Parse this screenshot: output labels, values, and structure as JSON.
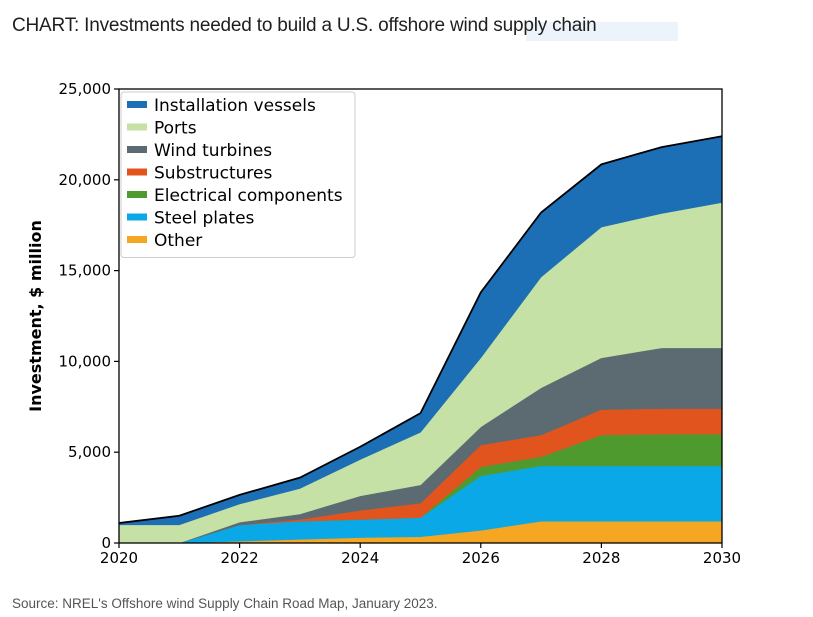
{
  "page": {
    "title": "CHART: Investments needed to build a U.S. offshore wind supply chain",
    "source": "Source: NREL's Offshore wind Supply Chain Road Map, January 2023."
  },
  "chart_data": {
    "type": "area",
    "stacked": true,
    "title": "",
    "xlabel": "",
    "ylabel": "Investment, $ million",
    "xlim": [
      2020,
      2030
    ],
    "ylim": [
      0,
      25000
    ],
    "x": [
      2020,
      2021,
      2022,
      2023,
      2024,
      2025,
      2026,
      2027,
      2028,
      2029,
      2030
    ],
    "xticks": [
      2020,
      2022,
      2024,
      2026,
      2028,
      2030
    ],
    "xtick_labels": [
      "2020",
      "2022",
      "2024",
      "2026",
      "2028",
      "2030"
    ],
    "yticks": [
      0,
      5000,
      10000,
      15000,
      20000,
      25000
    ],
    "ytick_labels": [
      "0",
      "5,000",
      "10,000",
      "15,000",
      "20,000",
      "25,000"
    ],
    "grid": false,
    "legend_position": "top-left",
    "series": [
      {
        "name": "Other",
        "color": "#f5a623",
        "values": [
          0,
          0,
          100,
          200,
          300,
          350,
          700,
          1200,
          1200,
          1200,
          1200
        ]
      },
      {
        "name": "Steel plates",
        "color": "#0aa8e6",
        "values": [
          0,
          0,
          900,
          1000,
          1000,
          1050,
          3000,
          3050,
          3050,
          3050,
          3050
        ]
      },
      {
        "name": "Electrical components",
        "color": "#4f9a2f",
        "values": [
          0,
          0,
          0,
          0,
          0,
          0,
          500,
          500,
          1700,
          1750,
          1750
        ]
      },
      {
        "name": "Substructures",
        "color": "#e2541e",
        "values": [
          0,
          0,
          0,
          100,
          500,
          800,
          1200,
          1200,
          1400,
          1400,
          1400
        ]
      },
      {
        "name": "Wind turbines",
        "color": "#5c6a72",
        "values": [
          0,
          0,
          150,
          300,
          800,
          1000,
          1000,
          2600,
          2850,
          3350,
          3350
        ]
      },
      {
        "name": "Ports",
        "color": "#c5e1a5",
        "values": [
          1000,
          1000,
          1000,
          1400,
          2000,
          2900,
          3800,
          6100,
          7200,
          7400,
          8000
        ]
      },
      {
        "name": "Installation vessels",
        "color": "#1c6fb5",
        "values": [
          100,
          500,
          500,
          600,
          700,
          1050,
          3600,
          3550,
          3450,
          3650,
          3650
        ]
      }
    ],
    "legend_order": [
      "Installation vessels",
      "Ports",
      "Wind turbines",
      "Substructures",
      "Electrical components",
      "Steel plates",
      "Other"
    ]
  }
}
